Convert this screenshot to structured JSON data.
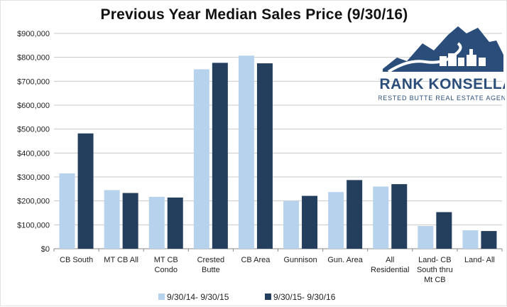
{
  "chart_data": {
    "type": "bar",
    "title": "Previous Year Median Sales Price (9/30/16)",
    "xlabel": "",
    "ylabel": "",
    "ylim": [
      0,
      900000
    ],
    "ytick_step": 100000,
    "ytick_labels": [
      "$0",
      "$100,000",
      "$200,000",
      "$300,000",
      "$400,000",
      "$500,000",
      "$600,000",
      "$700,000",
      "$800,000",
      "$900,000"
    ],
    "grid": true,
    "legend_position": "bottom",
    "categories": [
      [
        "CB South"
      ],
      [
        "MT CB All"
      ],
      [
        "MT CB",
        "Condo"
      ],
      [
        "Crested",
        "Butte"
      ],
      [
        "CB Area"
      ],
      [
        "Gunnison"
      ],
      [
        "Gun. Area"
      ],
      [
        "All",
        "Residential"
      ],
      [
        "Land- CB",
        "South thru",
        "Mt CB"
      ],
      [
        "Land- All"
      ]
    ],
    "series": [
      {
        "name": "9/30/14- 9/30/15",
        "color": "#b7d2ec",
        "values": [
          315000,
          245000,
          217000,
          750000,
          807000,
          200000,
          237000,
          260000,
          95000,
          77000
        ]
      },
      {
        "name": "9/30/15- 9/30/16",
        "color": "#243e5e",
        "values": [
          482000,
          233000,
          214000,
          777000,
          775000,
          221000,
          287000,
          270000,
          153000,
          74000
        ]
      }
    ]
  },
  "logo": {
    "name": "FRANK KONSELLA",
    "tagline": "CRESTED BUTTE REAL ESTATE AGENT",
    "color": "#2a4d7a"
  }
}
